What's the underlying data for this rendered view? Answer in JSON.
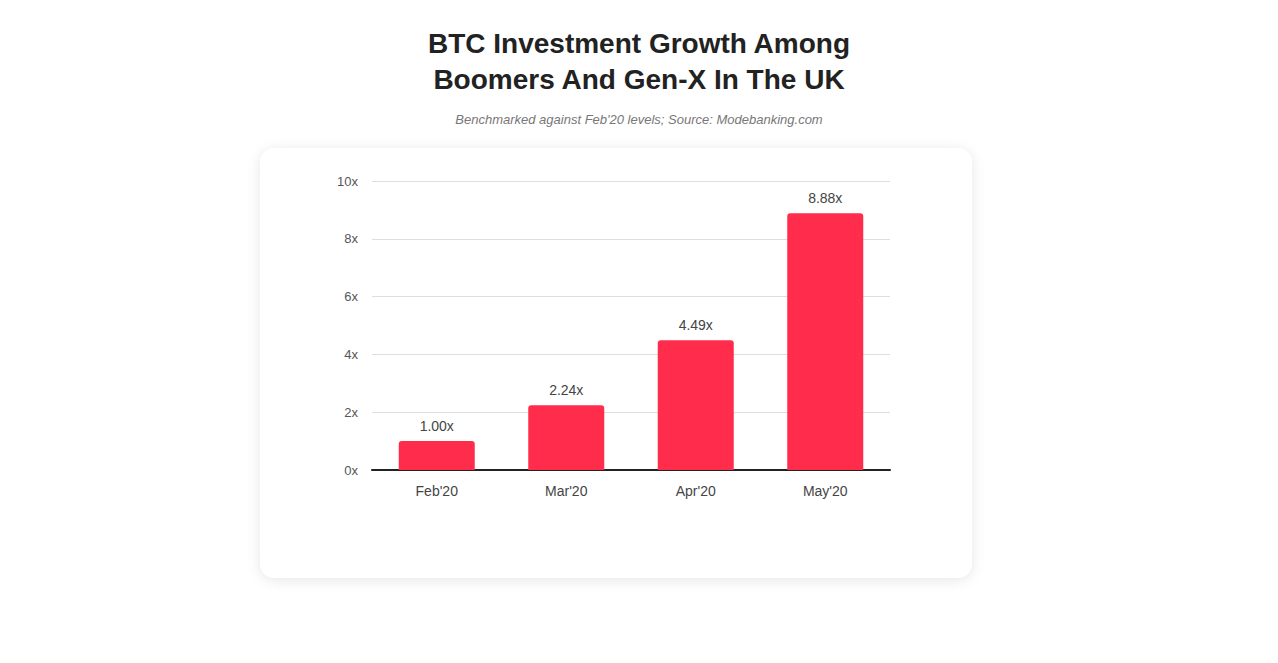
{
  "chart_data": {
    "type": "bar",
    "title": "BTC Investment Growth Among Boomers And Gen-X In The UK",
    "subtitle": "Benchmarked against Feb'20 levels; Source: Modebanking.com",
    "categories": [
      "Feb'20",
      "Mar'20",
      "Apr'20",
      "May'20"
    ],
    "values": [
      1.0,
      2.24,
      4.49,
      8.88
    ],
    "value_labels": [
      "1.00x",
      "2.24x",
      "4.49x",
      "8.88x"
    ],
    "color": "#ff2d4b",
    "ylim": [
      0,
      10
    ],
    "yticks": [
      {
        "value": 0,
        "label": "0x"
      },
      {
        "value": 2,
        "label": "2x"
      },
      {
        "value": 4,
        "label": "4x"
      },
      {
        "value": 6,
        "label": "6x"
      },
      {
        "value": 8,
        "label": "8x"
      },
      {
        "value": 10,
        "label": "10x"
      }
    ],
    "grid": true,
    "data_labels": true
  }
}
